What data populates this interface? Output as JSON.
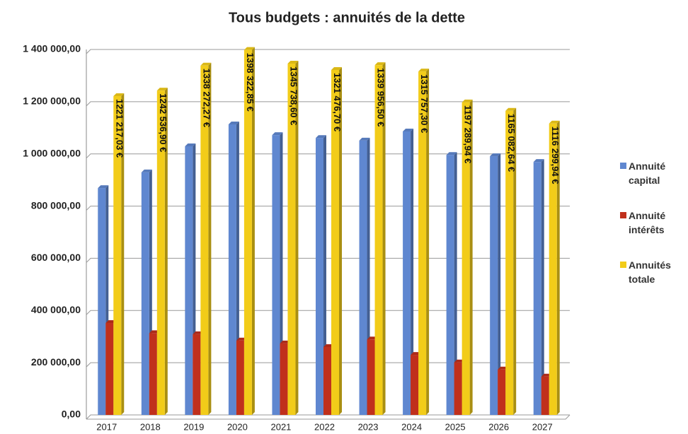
{
  "chart_data": {
    "type": "bar",
    "title": "Tous budgets : annuités de la dette",
    "categories": [
      "2017",
      "2018",
      "2019",
      "2020",
      "2021",
      "2022",
      "2023",
      "2024",
      "2025",
      "2026",
      "2027"
    ],
    "series": [
      {
        "name": "Annuité capital",
        "color": "#5f87d0",
        "values": [
          869000,
          929000,
          1029000,
          1113000,
          1072000,
          1061000,
          1051000,
          1086000,
          996000,
          991000,
          969000
        ]
      },
      {
        "name": "Annuité intérêts",
        "color": "#c0301c",
        "values": [
          352000,
          313000,
          309000,
          285000,
          274000,
          260000,
          289000,
          230000,
          201000,
          174000,
          147000
        ]
      },
      {
        "name": "Annuités totale",
        "color": "#f2cc19",
        "values": [
          1221217.03,
          1242536.9,
          1338272.27,
          1398322.85,
          1345738.6,
          1321476.7,
          1339956.5,
          1315757.3,
          1197289.94,
          1165082.64,
          1116299.94
        ],
        "value_labels": [
          "1221 217,03 €",
          "1242 536,90 €",
          "1338 272,27 €",
          "1398 322,85 €",
          "1345 738,60 €",
          "1321 476,70 €",
          "1339 956,50 €",
          "1315 757,30 €",
          "1197 289,94 €",
          "1165 082,64 €",
          "1116 299,94 €"
        ]
      }
    ],
    "ylim": [
      0,
      1400000
    ],
    "yticks": [
      {
        "value": 0,
        "label": "0,00"
      },
      {
        "value": 200000,
        "label": "200 000,00"
      },
      {
        "value": 400000,
        "label": "400 000,00"
      },
      {
        "value": 600000,
        "label": "600 000,00"
      },
      {
        "value": 800000,
        "label": "800 000,00"
      },
      {
        "value": 1000000,
        "label": "1 000 000,00"
      },
      {
        "value": 1200000,
        "label": "1 200 000,00"
      },
      {
        "value": 1400000,
        "label": "1 400 000,00"
      }
    ],
    "grid": true,
    "legend": "right"
  }
}
